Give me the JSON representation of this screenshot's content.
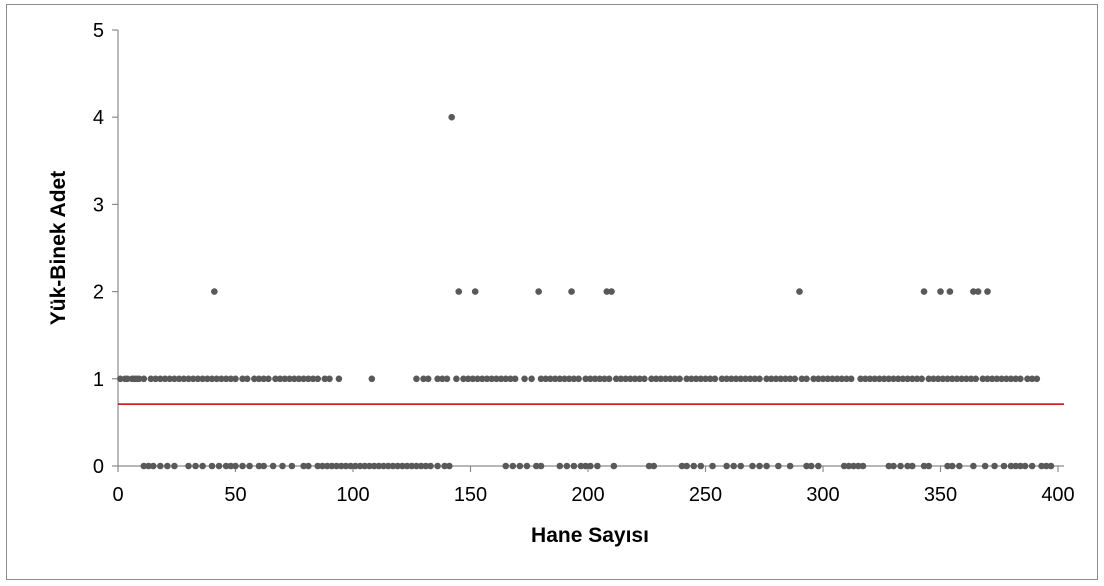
{
  "chart_data": {
    "type": "scatter",
    "title": "",
    "xlabel": "Hane Sayısı",
    "ylabel": "Yük-Binek Adet",
    "xlim": [
      0,
      400
    ],
    "ylim": [
      0,
      5
    ],
    "x_ticks": [
      "0",
      "50",
      "100",
      "150",
      "200",
      "250",
      "300",
      "350",
      "400"
    ],
    "y_ticks": [
      "0",
      "1",
      "2",
      "3",
      "4",
      "5"
    ],
    "grid": false,
    "legend": "none",
    "marker_color": "#595959",
    "reference_line": {
      "y": 0.71,
      "color": "#c00000"
    },
    "series": [
      {
        "points": [
          [
            41,
            2
          ],
          [
            142,
            4
          ],
          [
            145,
            2
          ],
          [
            152,
            2
          ],
          [
            179,
            2
          ],
          [
            193,
            2
          ],
          [
            208,
            2
          ],
          [
            210,
            2
          ],
          [
            290,
            2
          ],
          [
            343,
            2
          ],
          [
            350,
            2
          ],
          [
            354,
            2
          ],
          [
            364,
            2
          ],
          [
            366,
            2
          ],
          [
            370,
            2
          ],
          [
            1,
            1
          ],
          [
            3,
            1
          ],
          [
            4,
            1
          ],
          [
            6,
            1
          ],
          [
            7,
            1
          ],
          [
            8,
            1
          ],
          [
            9,
            1
          ],
          [
            11,
            1
          ],
          [
            14,
            1
          ],
          [
            16,
            1
          ],
          [
            18,
            1
          ],
          [
            20,
            1
          ],
          [
            22,
            1
          ],
          [
            24,
            1
          ],
          [
            26,
            1
          ],
          [
            28,
            1
          ],
          [
            30,
            1
          ],
          [
            32,
            1
          ],
          [
            34,
            1
          ],
          [
            36,
            1
          ],
          [
            38,
            1
          ],
          [
            40,
            1
          ],
          [
            42,
            1
          ],
          [
            44,
            1
          ],
          [
            46,
            1
          ],
          [
            48,
            1
          ],
          [
            50,
            1
          ],
          [
            53,
            1
          ],
          [
            55,
            1
          ],
          [
            58,
            1
          ],
          [
            60,
            1
          ],
          [
            62,
            1
          ],
          [
            64,
            1
          ],
          [
            67,
            1
          ],
          [
            69,
            1
          ],
          [
            71,
            1
          ],
          [
            73,
            1
          ],
          [
            75,
            1
          ],
          [
            77,
            1
          ],
          [
            79,
            1
          ],
          [
            81,
            1
          ],
          [
            83,
            1
          ],
          [
            85,
            1
          ],
          [
            88,
            1
          ],
          [
            90,
            1
          ],
          [
            94,
            1
          ],
          [
            108,
            1
          ],
          [
            127,
            1
          ],
          [
            130,
            1
          ],
          [
            132,
            1
          ],
          [
            136,
            1
          ],
          [
            138,
            1
          ],
          [
            140,
            1
          ],
          [
            144,
            1
          ],
          [
            147,
            1
          ],
          [
            149,
            1
          ],
          [
            151,
            1
          ],
          [
            153,
            1
          ],
          [
            155,
            1
          ],
          [
            157,
            1
          ],
          [
            159,
            1
          ],
          [
            161,
            1
          ],
          [
            163,
            1
          ],
          [
            165,
            1
          ],
          [
            167,
            1
          ],
          [
            169,
            1
          ],
          [
            173,
            1
          ],
          [
            176,
            1
          ],
          [
            180,
            1
          ],
          [
            182,
            1
          ],
          [
            184,
            1
          ],
          [
            186,
            1
          ],
          [
            188,
            1
          ],
          [
            190,
            1
          ],
          [
            192,
            1
          ],
          [
            194,
            1
          ],
          [
            196,
            1
          ],
          [
            199,
            1
          ],
          [
            201,
            1
          ],
          [
            203,
            1
          ],
          [
            205,
            1
          ],
          [
            207,
            1
          ],
          [
            209,
            1
          ],
          [
            212,
            1
          ],
          [
            214,
            1
          ],
          [
            216,
            1
          ],
          [
            218,
            1
          ],
          [
            220,
            1
          ],
          [
            222,
            1
          ],
          [
            224,
            1
          ],
          [
            227,
            1
          ],
          [
            229,
            1
          ],
          [
            231,
            1
          ],
          [
            233,
            1
          ],
          [
            235,
            1
          ],
          [
            237,
            1
          ],
          [
            239,
            1
          ],
          [
            242,
            1
          ],
          [
            244,
            1
          ],
          [
            246,
            1
          ],
          [
            248,
            1
          ],
          [
            250,
            1
          ],
          [
            252,
            1
          ],
          [
            254,
            1
          ],
          [
            257,
            1
          ],
          [
            259,
            1
          ],
          [
            261,
            1
          ],
          [
            263,
            1
          ],
          [
            265,
            1
          ],
          [
            267,
            1
          ],
          [
            269,
            1
          ],
          [
            271,
            1
          ],
          [
            273,
            1
          ],
          [
            276,
            1
          ],
          [
            278,
            1
          ],
          [
            280,
            1
          ],
          [
            282,
            1
          ],
          [
            284,
            1
          ],
          [
            286,
            1
          ],
          [
            288,
            1
          ],
          [
            291,
            1
          ],
          [
            293,
            1
          ],
          [
            296,
            1
          ],
          [
            298,
            1
          ],
          [
            300,
            1
          ],
          [
            302,
            1
          ],
          [
            304,
            1
          ],
          [
            306,
            1
          ],
          [
            308,
            1
          ],
          [
            310,
            1
          ],
          [
            312,
            1
          ],
          [
            316,
            1
          ],
          [
            318,
            1
          ],
          [
            320,
            1
          ],
          [
            322,
            1
          ],
          [
            324,
            1
          ],
          [
            326,
            1
          ],
          [
            328,
            1
          ],
          [
            330,
            1
          ],
          [
            332,
            1
          ],
          [
            334,
            1
          ],
          [
            336,
            1
          ],
          [
            338,
            1
          ],
          [
            340,
            1
          ],
          [
            342,
            1
          ],
          [
            345,
            1
          ],
          [
            347,
            1
          ],
          [
            349,
            1
          ],
          [
            351,
            1
          ],
          [
            353,
            1
          ],
          [
            355,
            1
          ],
          [
            357,
            1
          ],
          [
            359,
            1
          ],
          [
            361,
            1
          ],
          [
            363,
            1
          ],
          [
            365,
            1
          ],
          [
            368,
            1
          ],
          [
            370,
            1
          ],
          [
            372,
            1
          ],
          [
            374,
            1
          ],
          [
            376,
            1
          ],
          [
            378,
            1
          ],
          [
            380,
            1
          ],
          [
            382,
            1
          ],
          [
            384,
            1
          ],
          [
            387,
            1
          ],
          [
            389,
            1
          ],
          [
            391,
            1
          ],
          [
            11,
            0
          ],
          [
            13,
            0
          ],
          [
            15,
            0
          ],
          [
            18,
            0
          ],
          [
            21,
            0
          ],
          [
            24,
            0
          ],
          [
            30,
            0
          ],
          [
            33,
            0
          ],
          [
            36,
            0
          ],
          [
            40,
            0
          ],
          [
            43,
            0
          ],
          [
            46,
            0
          ],
          [
            48,
            0
          ],
          [
            50,
            0
          ],
          [
            53,
            0
          ],
          [
            56,
            0
          ],
          [
            60,
            0
          ],
          [
            62,
            0
          ],
          [
            66,
            0
          ],
          [
            70,
            0
          ],
          [
            74,
            0
          ],
          [
            79,
            0
          ],
          [
            81,
            0
          ],
          [
            85,
            0
          ],
          [
            87,
            0
          ],
          [
            89,
            0
          ],
          [
            91,
            0
          ],
          [
            93,
            0
          ],
          [
            95,
            0
          ],
          [
            97,
            0
          ],
          [
            99,
            0
          ],
          [
            101,
            0
          ],
          [
            103,
            0
          ],
          [
            105,
            0
          ],
          [
            107,
            0
          ],
          [
            109,
            0
          ],
          [
            111,
            0
          ],
          [
            113,
            0
          ],
          [
            115,
            0
          ],
          [
            117,
            0
          ],
          [
            119,
            0
          ],
          [
            121,
            0
          ],
          [
            123,
            0
          ],
          [
            125,
            0
          ],
          [
            127,
            0
          ],
          [
            129,
            0
          ],
          [
            131,
            0
          ],
          [
            133,
            0
          ],
          [
            136,
            0
          ],
          [
            139,
            0
          ],
          [
            141,
            0
          ],
          [
            165,
            0
          ],
          [
            168,
            0
          ],
          [
            171,
            0
          ],
          [
            174,
            0
          ],
          [
            178,
            0
          ],
          [
            180,
            0
          ],
          [
            188,
            0
          ],
          [
            191,
            0
          ],
          [
            194,
            0
          ],
          [
            197,
            0
          ],
          [
            199,
            0
          ],
          [
            201,
            0
          ],
          [
            204,
            0
          ],
          [
            211,
            0
          ],
          [
            226,
            0
          ],
          [
            228,
            0
          ],
          [
            240,
            0
          ],
          [
            242,
            0
          ],
          [
            245,
            0
          ],
          [
            248,
            0
          ],
          [
            253,
            0
          ],
          [
            259,
            0
          ],
          [
            262,
            0
          ],
          [
            265,
            0
          ],
          [
            270,
            0
          ],
          [
            273,
            0
          ],
          [
            276,
            0
          ],
          [
            281,
            0
          ],
          [
            286,
            0
          ],
          [
            293,
            0
          ],
          [
            295,
            0
          ],
          [
            298,
            0
          ],
          [
            309,
            0
          ],
          [
            311,
            0
          ],
          [
            313,
            0
          ],
          [
            315,
            0
          ],
          [
            317,
            0
          ],
          [
            328,
            0
          ],
          [
            330,
            0
          ],
          [
            333,
            0
          ],
          [
            336,
            0
          ],
          [
            338,
            0
          ],
          [
            343,
            0
          ],
          [
            345,
            0
          ],
          [
            353,
            0
          ],
          [
            355,
            0
          ],
          [
            358,
            0
          ],
          [
            364,
            0
          ],
          [
            369,
            0
          ],
          [
            373,
            0
          ],
          [
            377,
            0
          ],
          [
            380,
            0
          ],
          [
            382,
            0
          ],
          [
            384,
            0
          ],
          [
            386,
            0
          ],
          [
            389,
            0
          ],
          [
            393,
            0
          ],
          [
            395,
            0
          ],
          [
            397,
            0
          ]
        ]
      }
    ]
  }
}
